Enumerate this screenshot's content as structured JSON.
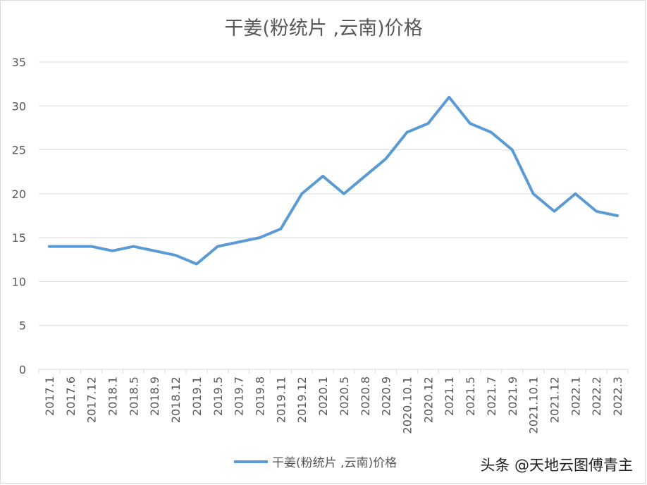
{
  "chart_data": {
    "type": "line",
    "title": "干姜(粉统片 ,云南)价格",
    "xlabel": "",
    "ylabel": "",
    "ylim": [
      0,
      35
    ],
    "yticks": [
      0,
      5,
      10,
      15,
      20,
      25,
      30,
      35
    ],
    "grid": true,
    "legend_position": "bottom",
    "categories": [
      "2017.1",
      "2017.6",
      "2017.12",
      "2018.1",
      "2018.5",
      "2018.9",
      "2018.12",
      "2019.1",
      "2019.5",
      "2019.7",
      "2019.8",
      "2019.11",
      "2019.12",
      "2020.1",
      "2020.5",
      "2020.8",
      "2020.9",
      "2020.10.1",
      "2020.12",
      "2021.1",
      "2021.5",
      "2021.7",
      "2021.9",
      "2021.10.1",
      "2021.12",
      "2022.1",
      "2022.2",
      "2022.3"
    ],
    "series": [
      {
        "name": "干姜(粉统片 ,云南)价格",
        "color": "#5b9bd5",
        "values": [
          14,
          14,
          14,
          13.5,
          14,
          13.5,
          13,
          12,
          14,
          14.5,
          15,
          16,
          20,
          22,
          20,
          22,
          24,
          27,
          28,
          31,
          28,
          27,
          25,
          20,
          18,
          20,
          18,
          17.5
        ]
      }
    ]
  },
  "watermark": "头条 @天地云图傅青主"
}
